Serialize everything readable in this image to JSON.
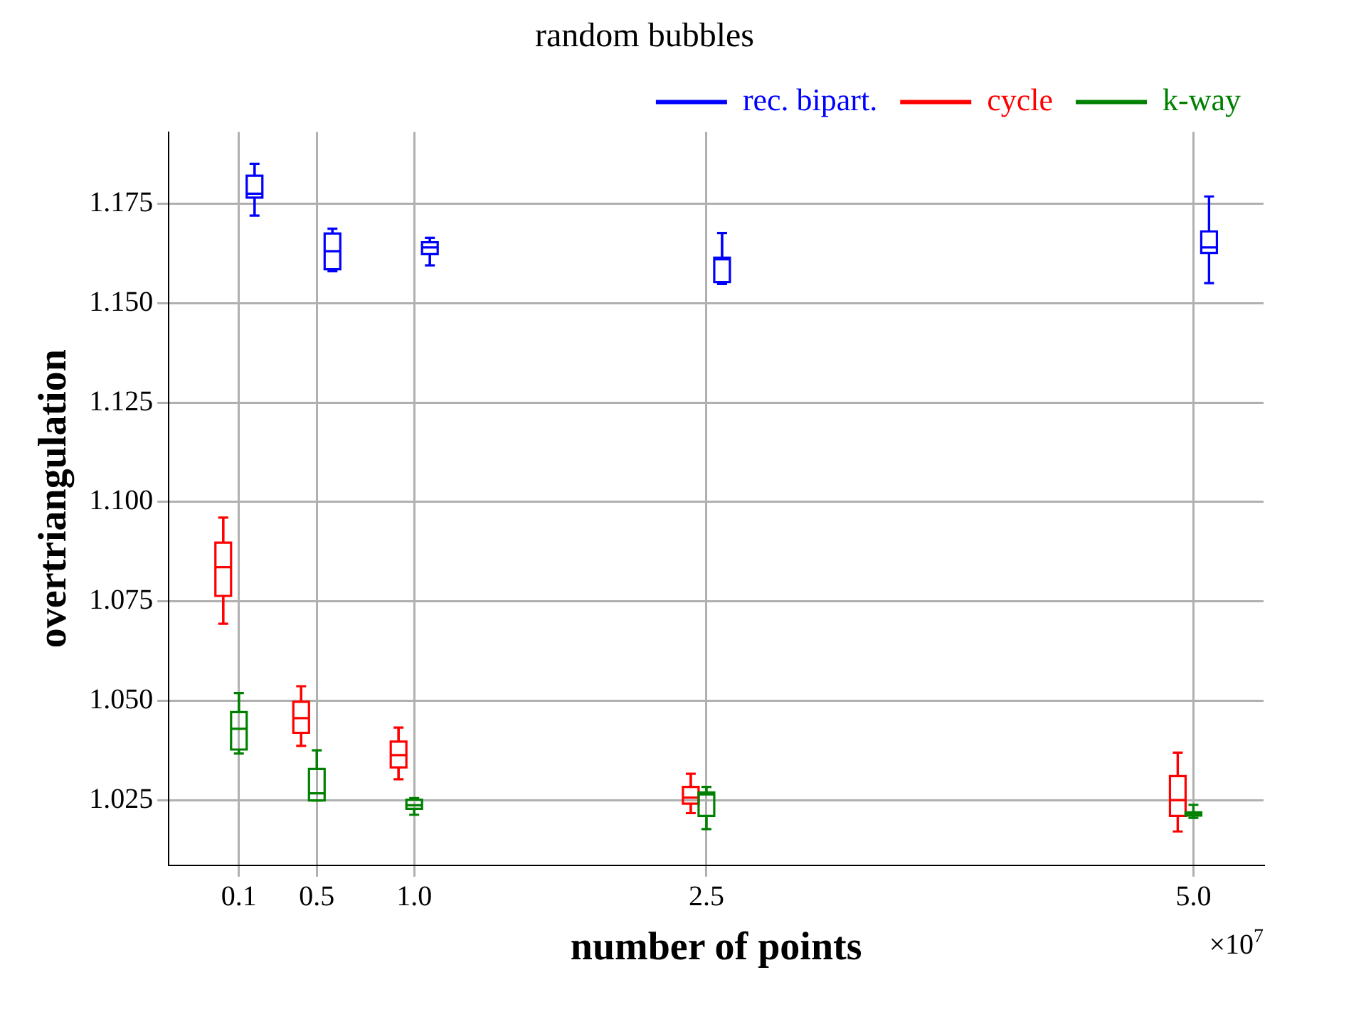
{
  "chart_data": {
    "type": "box",
    "title": "random bubbles",
    "xlabel": "number of points",
    "ylabel": "overtriangulation",
    "annotations": [
      "×10$^{7}$"
    ],
    "x": [
      0.1,
      0.5,
      1.0,
      2.5,
      5.0
    ],
    "xlim": [
      -0.26,
      5.36
    ],
    "xticks": [
      0.1,
      0.5,
      {
        "value": 1,
        "label": "1.0"
      },
      2.5,
      {
        "value": 5,
        "label": "5.0"
      }
    ],
    "ylim": [
      1.0087,
      1.193
    ],
    "yticks": [
      1.025,
      {
        "value": 1.05,
        "label": "1.050"
      },
      1.075,
      {
        "value": 1.1,
        "label": "1.100"
      },
      1.125,
      {
        "value": 1.15,
        "label": "1.150"
      },
      1.175
    ],
    "grid": true,
    "legend": "top right",
    "series": [
      {
        "name": "rec. bipart.",
        "color": "#0000ff",
        "boxes": [
          {
            "low": 1.172,
            "q1": 1.1765,
            "median": 1.1775,
            "q3": 1.182,
            "high": 1.185
          },
          {
            "low": 1.158,
            "q1": 1.1585,
            "median": 1.163,
            "q3": 1.1675,
            "high": 1.1687
          },
          {
            "low": 1.1595,
            "q1": 1.1623,
            "median": 1.164,
            "q3": 1.1653,
            "high": 1.1664
          },
          {
            "low": 1.1548,
            "q1": 1.1553,
            "median": 1.161,
            "q3": 1.1614,
            "high": 1.1676
          },
          {
            "low": 1.155,
            "q1": 1.1626,
            "median": 1.164,
            "q3": 1.168,
            "high": 1.1768
          }
        ]
      },
      {
        "name": "cycle",
        "color": "#ff0000",
        "boxes": [
          {
            "low": 1.0694,
            "q1": 1.0764,
            "median": 1.0836,
            "q3": 1.0898,
            "high": 1.0961
          },
          {
            "low": 1.0387,
            "q1": 1.042,
            "median": 1.0457,
            "q3": 1.0498,
            "high": 1.0537
          },
          {
            "low": 1.0303,
            "q1": 1.0333,
            "median": 1.0364,
            "q3": 1.0398,
            "high": 1.0433
          },
          {
            "low": 1.0218,
            "q1": 1.0242,
            "median": 1.0257,
            "q3": 1.0284,
            "high": 1.0317
          },
          {
            "low": 1.0172,
            "q1": 1.0211,
            "median": 1.0251,
            "q3": 1.0311,
            "high": 1.037
          }
        ]
      },
      {
        "name": "k-way",
        "color": "#008000",
        "boxes": [
          {
            "low": 1.0368,
            "q1": 1.0378,
            "median": 1.043,
            "q3": 1.0472,
            "high": 1.052
          },
          {
            "low": 1.025,
            "q1": 1.025,
            "median": 1.0268,
            "q3": 1.0329,
            "high": 1.0376
          },
          {
            "low": 1.0214,
            "q1": 1.0229,
            "median": 1.0238,
            "q3": 1.0252,
            "high": 1.0256
          },
          {
            "low": 1.0178,
            "q1": 1.0211,
            "median": 1.0265,
            "q3": 1.027,
            "high": 1.0284
          },
          {
            "low": 1.0206,
            "q1": 1.0212,
            "median": 1.0217,
            "q3": 1.022,
            "high": 1.0239
          }
        ]
      }
    ]
  }
}
